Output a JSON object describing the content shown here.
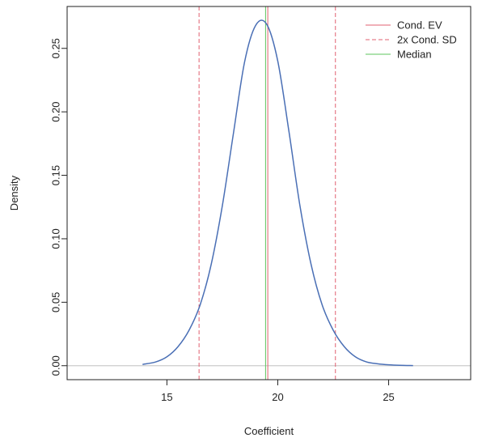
{
  "chart_data": {
    "type": "line",
    "title": "",
    "xlabel": "Coefficient",
    "ylabel": "Density",
    "xlim": [
      10.5,
      28.7
    ],
    "ylim": [
      -0.011,
      0.283
    ],
    "x_ticks": [
      15,
      20,
      25
    ],
    "y_ticks": [
      0.0,
      0.05,
      0.1,
      0.15,
      0.2,
      0.25
    ],
    "x_tick_labels": [
      "15",
      "20",
      "25"
    ],
    "y_tick_labels": [
      "0.00",
      "0.05",
      "0.10",
      "0.15",
      "0.20",
      "0.25"
    ],
    "grid": false,
    "legend_position": "top-right",
    "series": [
      {
        "color": "#4a6fb5",
        "x": [
          13.9,
          14.5,
          15.0,
          15.5,
          16.0,
          16.5,
          17.0,
          17.5,
          18.0,
          18.5,
          19.0,
          19.5,
          20.0,
          20.5,
          21.0,
          21.5,
          22.0,
          22.5,
          23.0,
          23.5,
          24.0,
          24.5,
          25.0,
          25.5,
          26.1
        ],
        "y": [
          0.001,
          0.003,
          0.007,
          0.015,
          0.028,
          0.048,
          0.08,
          0.126,
          0.183,
          0.239,
          0.268,
          0.269,
          0.24,
          0.185,
          0.126,
          0.08,
          0.048,
          0.028,
          0.015,
          0.007,
          0.003,
          0.0015,
          0.0007,
          0.0003,
          0.0001
        ]
      }
    ],
    "reference_lines": [
      {
        "name": "Cond. EV",
        "x": 19.55,
        "color": "#e06070",
        "style": "solid"
      },
      {
        "name": "2x Cond. SD",
        "x": 16.45,
        "color": "#e06070",
        "style": "dashed"
      },
      {
        "x": 22.6,
        "color": "#e06070",
        "style": "dashed"
      },
      {
        "name": "Median",
        "x": 19.45,
        "color": "#5ec45e",
        "style": "solid"
      }
    ],
    "baseline": {
      "y": 0,
      "color": "#cccccc"
    },
    "legend": [
      {
        "label": "Cond. EV",
        "color": "#e06070",
        "style": "solid"
      },
      {
        "label": "2x Cond. SD",
        "color": "#e06070",
        "style": "dashed"
      },
      {
        "label": "Median",
        "color": "#5ec45e",
        "style": "solid"
      }
    ]
  }
}
